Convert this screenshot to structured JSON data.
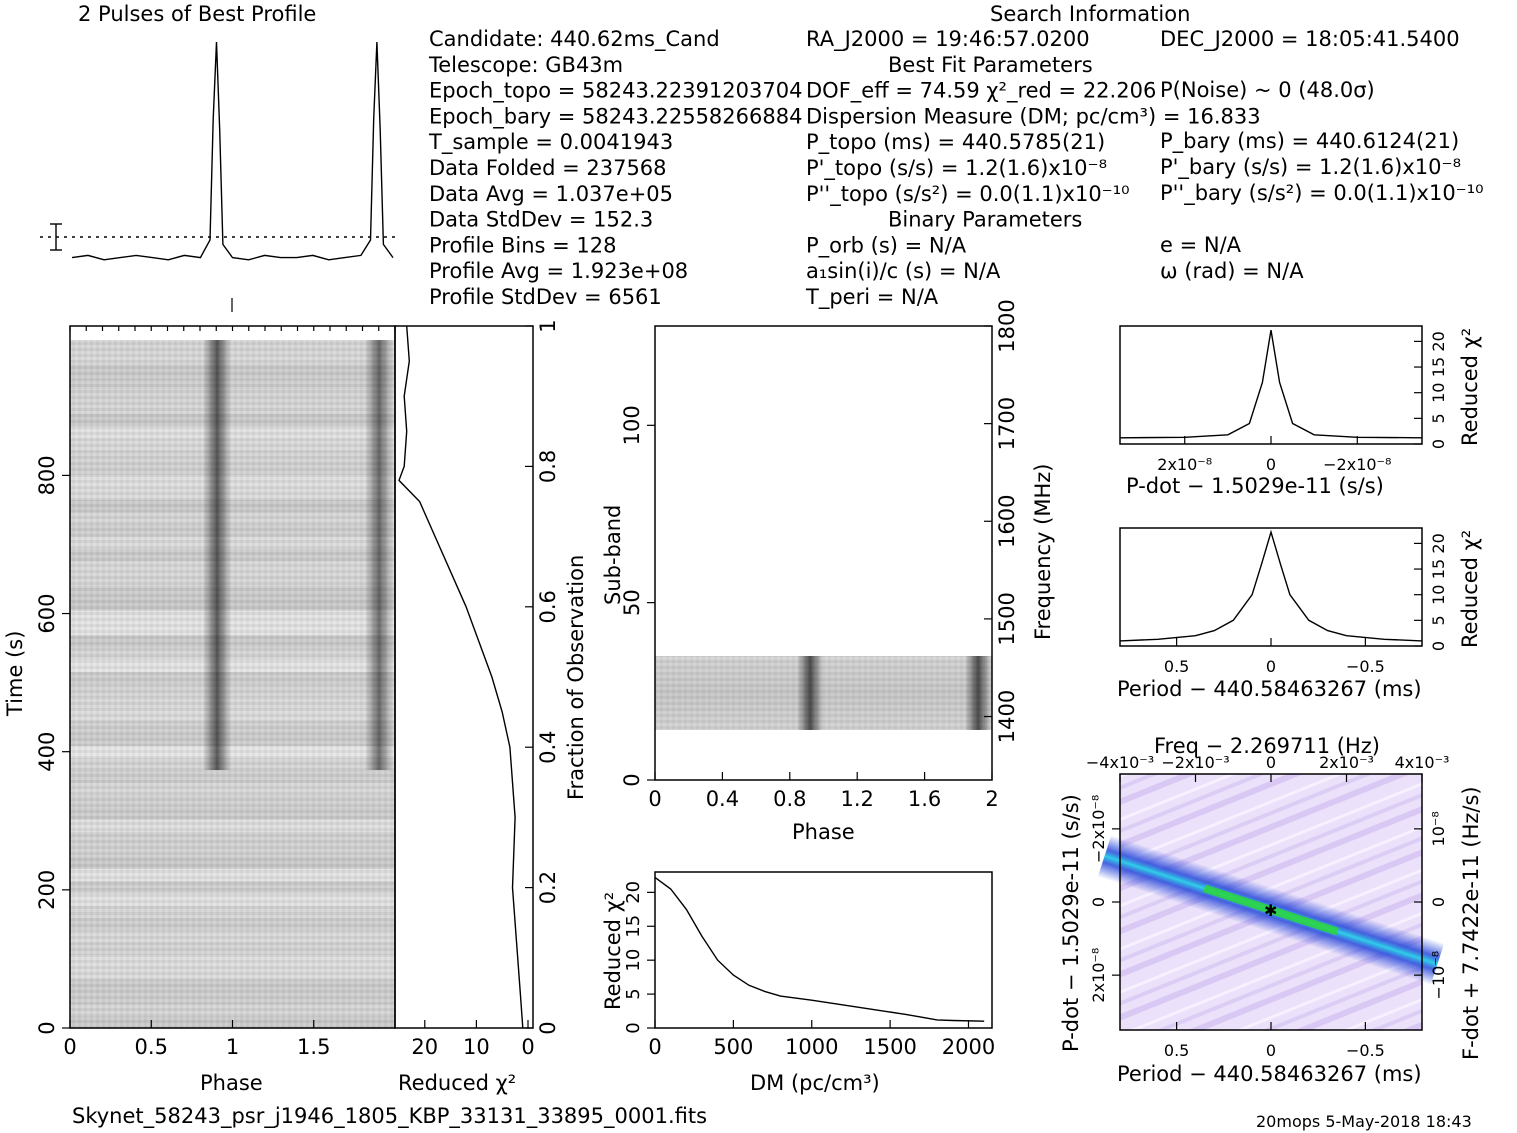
{
  "header": {
    "title_left": "2 Pulses of Best Profile",
    "title_right": "Search Information"
  },
  "info": {
    "col1": [
      "Candidate:  440.62ms_Cand",
      "Telescope:  GB43m",
      "Epoch_topo = 58243.22391203704",
      "Epoch_bary = 58243.22558266884",
      "T_sample        =  0.0041943",
      "Data Folded     =  237568",
      "Data Avg        =  1.037e+05",
      "Data StdDev     =  152.3",
      "Profile Bins    =  128",
      "Profile Avg     =  1.923e+08",
      "Profile StdDev  =  6561"
    ],
    "col2": [
      "RA_J2000 = 19:46:57.0200",
      "Best Fit Parameters",
      "DOF_eff = 74.59  χ²_red = 22.206",
      "Dispersion Measure (DM; pc/cm³) = 16.833",
      "P_topo (ms) =  440.5785(21)",
      "P'_topo (s/s) =  1.2(1.6)x10⁻⁸",
      "P''_topo (s/s²) = 0.0(1.1)x10⁻¹⁰",
      "Binary Parameters",
      "P_orb (s) = N/A",
      "a₁sin(i)/c (s) = N/A",
      "T_peri = N/A"
    ],
    "col3": [
      "DEC_J2000 = 18:05:41.5400",
      "P(Noise) ~ 0   (48.0σ)",
      "P_bary (ms) =  440.6124(21)",
      "P'_bary (s/s) =  1.2(1.6)x10⁻⁸",
      "P''_bary (s/s²) = 0.0(1.1)x10⁻¹⁰",
      "e = N/A",
      "ω (rad) = N/A"
    ]
  },
  "footer": {
    "filename": "Skynet_58243_psr_j1946_1805_KBP_33131_33895_0001.fits",
    "stamp": "20mops  5-May-2018 18:43"
  },
  "colors": {
    "line": "#000000",
    "ppdot_bg": "#e6d8f7",
    "ppdot_core": "#1c3fd8",
    "ppdot_peak": "#2bd63a"
  },
  "chart_data": [
    {
      "id": "profile",
      "type": "line",
      "title": "2 Pulses of Best Profile",
      "x": [
        0.0,
        0.1,
        0.2,
        0.3,
        0.4,
        0.5,
        0.6,
        0.7,
        0.8,
        0.86,
        0.88,
        0.9,
        0.92,
        0.94,
        1.0,
        1.1,
        1.2,
        1.3,
        1.4,
        1.5,
        1.6,
        1.7,
        1.8,
        1.86,
        1.88,
        1.9,
        1.92,
        1.94,
        2.0
      ],
      "values": [
        0.02,
        0.03,
        0.01,
        0.02,
        0.03,
        0.02,
        0.01,
        0.03,
        0.02,
        0.1,
        0.65,
        1.0,
        0.6,
        0.08,
        0.02,
        0.01,
        0.03,
        0.02,
        0.02,
        0.03,
        0.01,
        0.02,
        0.03,
        0.1,
        0.65,
        1.0,
        0.6,
        0.08,
        0.02
      ],
      "note_units": "normalized"
    },
    {
      "id": "time_phase",
      "type": "heatmap",
      "xlabel": "Phase",
      "ylabel": "Time (s)",
      "xticks": [
        "0",
        "0.5",
        "1",
        "1.5"
      ],
      "yticks": [
        "0",
        "200",
        "400",
        "600",
        "800"
      ],
      "xlim": [
        0,
        2
      ],
      "ylim": [
        0,
        996
      ],
      "pulse_phases": [
        0.9,
        1.9
      ]
    },
    {
      "id": "chi_vs_time",
      "type": "line",
      "xlabel": "Reduced χ²",
      "ylabel": "Fraction of Observation",
      "xticks": [
        "20",
        "10",
        "0"
      ],
      "yticks": [
        "0",
        "0.2",
        "0.4",
        "0.6",
        "0.8",
        "1"
      ],
      "xlim": [
        25,
        0
      ],
      "ylim": [
        0,
        1
      ],
      "fraction": [
        0.0,
        0.05,
        0.1,
        0.2,
        0.3,
        0.4,
        0.45,
        0.5,
        0.55,
        0.6,
        0.65,
        0.7,
        0.75,
        0.78,
        0.8,
        0.85,
        0.9,
        0.95,
        1.0
      ],
      "chi": [
        1.0,
        1.5,
        2.0,
        3.0,
        2.5,
        3.5,
        5.0,
        7.0,
        9.5,
        12.0,
        15.0,
        18.0,
        21.0,
        25.0,
        24.0,
        23.5,
        24.0,
        23.0,
        23.5
      ]
    },
    {
      "id": "subband_phase",
      "type": "heatmap",
      "xlabel": "Phase",
      "ylabel": "Sub-band",
      "y2label": "Frequency (MHz)",
      "xticks": [
        "0",
        "0.4",
        "0.8",
        "1.2",
        "1.6",
        "2"
      ],
      "yticks": [
        "0",
        "50",
        "100"
      ],
      "y2ticks": [
        "1400",
        "1500",
        "1600",
        "1700",
        "1800"
      ],
      "xlim": [
        0,
        2
      ],
      "ylim": [
        0,
        128
      ],
      "band_subbands": [
        14,
        35
      ],
      "pulse_phases": [
        0.9,
        1.9
      ]
    },
    {
      "id": "dm_curve",
      "type": "line",
      "xlabel": "DM (pc/cm³)",
      "ylabel": "Reduced χ²",
      "xticks": [
        "0",
        "500",
        "1000",
        "1500",
        "2000"
      ],
      "yticks": [
        "0",
        "5",
        "10",
        "15",
        "20"
      ],
      "xlim": [
        0,
        2150
      ],
      "ylim": [
        0,
        23
      ],
      "x": [
        0,
        100,
        200,
        300,
        400,
        500,
        600,
        700,
        800,
        1000,
        1200,
        1400,
        1600,
        1800,
        1900,
        2100
      ],
      "values": [
        22.2,
        20.5,
        17.5,
        13.5,
        10.0,
        7.8,
        6.3,
        5.4,
        4.7,
        4.1,
        3.4,
        2.7,
        2.0,
        1.2,
        1.1,
        1.0
      ]
    },
    {
      "id": "pdot_curve",
      "type": "line",
      "xlabel": "P-dot − 1.5029e-11 (s/s)",
      "ylabel": "Reduced χ²",
      "xticks": [
        "2x10⁻⁸",
        "0",
        "−2x10⁻⁸"
      ],
      "yticks": [
        "0",
        "5",
        "10",
        "15",
        "20"
      ],
      "xlim": [
        3.5e-08,
        -3.5e-08
      ],
      "ylim": [
        0,
        23
      ],
      "x": [
        3.5e-08,
        2e-08,
        1e-08,
        5e-09,
        2e-09,
        0,
        -2e-09,
        -5e-09,
        -1e-08,
        -2e-08,
        -3.5e-08
      ],
      "values": [
        1.2,
        1.3,
        1.8,
        4.0,
        12.0,
        22.2,
        12.0,
        4.0,
        1.8,
        1.3,
        1.2
      ]
    },
    {
      "id": "period_curve",
      "type": "line",
      "xlabel": "Period − 440.58463267 (ms)",
      "ylabel": "Reduced χ²",
      "xticks": [
        "0.5",
        "0",
        "−0.5"
      ],
      "yticks": [
        "0",
        "5",
        "10",
        "15",
        "20"
      ],
      "xlim": [
        0.8,
        -0.8
      ],
      "ylim": [
        0,
        23
      ],
      "x": [
        0.8,
        0.6,
        0.4,
        0.3,
        0.2,
        0.1,
        0.05,
        0,
        -0.05,
        -0.1,
        -0.2,
        -0.3,
        -0.4,
        -0.6,
        -0.8
      ],
      "values": [
        1.0,
        1.3,
        2.0,
        3.0,
        5.0,
        10.0,
        16.0,
        22.2,
        16.0,
        10.0,
        5.0,
        3.0,
        2.0,
        1.3,
        1.0
      ]
    },
    {
      "id": "p_pdot",
      "type": "heatmap",
      "title": "Freq − 2.269711 (Hz)",
      "xlabel": "Period − 440.58463267 (ms)",
      "ylabel": "P-dot − 1.5029e-11 (s/s)",
      "y2label": "F-dot + 7.7422e-11 (Hz/s)",
      "xticks": [
        "0.5",
        "0",
        "−0.5"
      ],
      "x2ticks": [
        "−4x10⁻³",
        "−2x10⁻³",
        "0",
        "2x10⁻³",
        "4x10⁻³"
      ],
      "yticks": [
        "−2x10⁻⁸",
        "0",
        "2x10⁻⁸"
      ],
      "y2ticks": [
        "10⁻⁸",
        "0",
        "−10⁻⁸"
      ]
    }
  ]
}
